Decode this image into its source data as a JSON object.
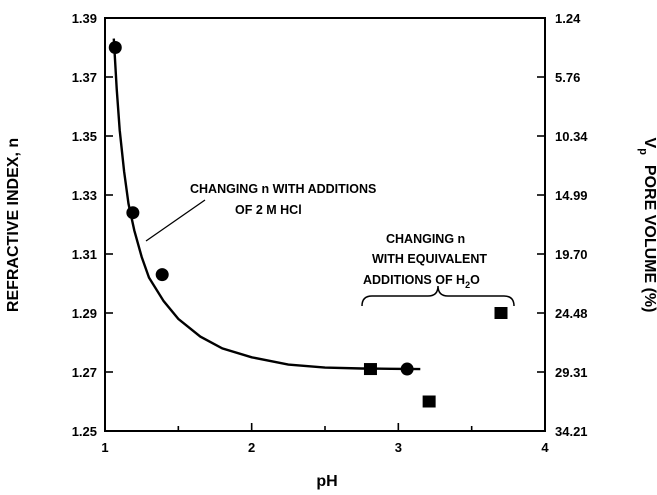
{
  "chart_data": {
    "type": "scatter",
    "xlabel": "pH",
    "ylabel": "REFRACTIVE INDEX, n",
    "y2label_main": "V",
    "y2label_sub": "p",
    "y2label_rest": "PORE VOLUME (%)",
    "xlim": [
      1,
      4
    ],
    "ylim": [
      1.25,
      1.39
    ],
    "x_ticks": [
      "1",
      "2",
      "3",
      "4"
    ],
    "y_ticks": [
      "1.25",
      "1.27",
      "1.29",
      "1.31",
      "1.33",
      "1.35",
      "1.37",
      "1.39"
    ],
    "y2_ticks": [
      "34.21",
      "29.31",
      "24.48",
      "19.70",
      "14.99",
      "10.34",
      "5.76",
      "1.24"
    ],
    "grid": false,
    "series": [
      {
        "name": "CHANGING n WITH ADDITIONS OF 2 M HCl",
        "marker": "circle",
        "x": [
          1.07,
          1.19,
          1.39,
          3.06
        ],
        "y": [
          1.38,
          1.324,
          1.303,
          1.271
        ]
      },
      {
        "name": "CHANGING n WITH EQUIVALENT ADDITIONS OF H2O",
        "marker": "square",
        "x": [
          2.81,
          3.21,
          3.7
        ],
        "y": [
          1.271,
          1.26,
          1.29
        ]
      }
    ],
    "fit_curve": {
      "x": [
        1.06,
        1.08,
        1.1,
        1.13,
        1.16,
        1.2,
        1.25,
        1.3,
        1.4,
        1.5,
        1.65,
        1.8,
        2.0,
        2.25,
        2.5,
        2.75,
        2.95,
        3.15
      ],
      "y": [
        1.383,
        1.366,
        1.352,
        1.338,
        1.327,
        1.318,
        1.309,
        1.302,
        1.294,
        1.288,
        1.282,
        1.278,
        1.275,
        1.2725,
        1.2715,
        1.2712,
        1.2711,
        1.271
      ]
    },
    "annotations": {
      "hcl_line1": "CHANGING n WITH ADDITIONS",
      "hcl_line2": "OF 2 M HCl",
      "h2o_line1": "CHANGING n",
      "h2o_line2": "WITH EQUIVALENT",
      "h2o_line3_main": "ADDITIONS OF H",
      "h2o_line3_sub": "2",
      "h2o_line3_end": "O"
    }
  }
}
